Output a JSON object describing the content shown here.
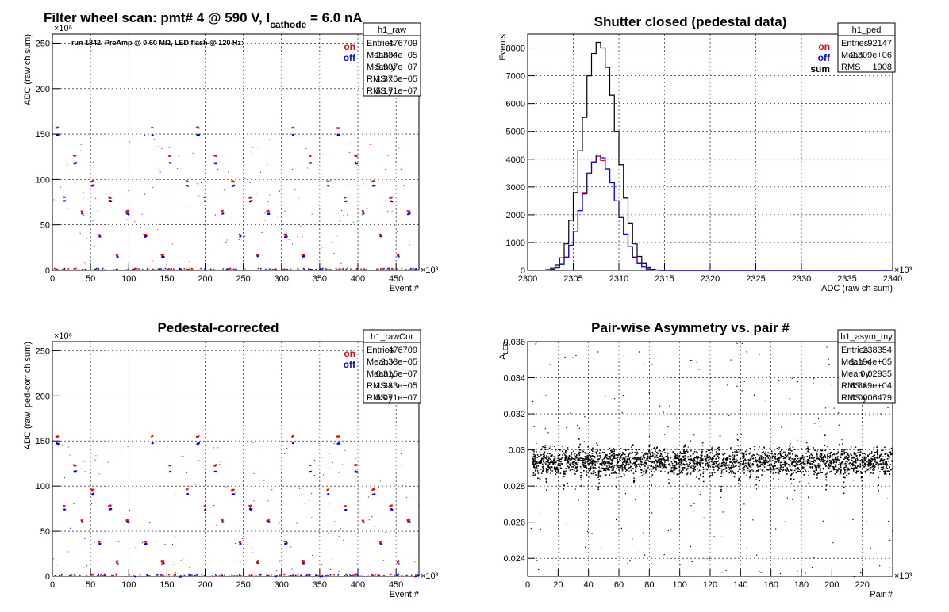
{
  "chart_data": [
    {
      "id": "raw",
      "type": "scatter",
      "title": "Filter wheel scan: pmt#   4 @   590 V, I",
      "title_sub": "cathode",
      "title_tail": " = 6.0 nA",
      "xlabel": "Event #",
      "ylabel": "ADC (raw ch sum)",
      "x_multiplier": "×10³",
      "y_multiplier": "×10⁶",
      "xlim": [
        0,
        480
      ],
      "ylim": [
        0,
        260
      ],
      "x_ticks": [
        "0",
        "50",
        "100",
        "150",
        "200",
        "250",
        "300",
        "350",
        "400",
        "450"
      ],
      "y_ticks": [
        "0",
        "50",
        "100",
        "150",
        "200",
        "250"
      ],
      "x_tick_values": [
        0,
        50,
        100,
        150,
        200,
        250,
        300,
        350,
        400,
        450
      ],
      "y_tick_values": [
        0,
        50,
        100,
        150,
        200,
        250
      ],
      "annotation": "run 1842, PreAmp @ 0.60 MΩ, LED flash @  120 Hz:",
      "grid": true,
      "legend": [
        "on",
        "off"
      ],
      "legend_placement": "top-right",
      "stats": {
        "name": "h1_raw",
        "rows": [
          [
            "Entries",
            "476709"
          ],
          [
            "Mean x",
            "2.384e+05"
          ],
          [
            "Mean y",
            "5.907e+07"
          ],
          [
            "RMS x",
            "1.376e+05"
          ],
          [
            "RMS y",
            "5.171e+07"
          ]
        ]
      },
      "series": [
        {
          "name": "on",
          "color": "#ff0000",
          "levels": [
            158,
            127,
            99,
            81,
            66,
            40,
            18,
            2
          ]
        },
        {
          "name": "off",
          "color": "#0000ff",
          "levels": [
            150,
            119,
            94,
            77,
            63,
            38,
            16,
            2
          ]
        }
      ],
      "period": 23
    },
    {
      "id": "ped",
      "type": "histogram",
      "title": "Shutter closed (pedestal data)",
      "xlabel": "ADC (raw ch sum)",
      "ylabel": "Events",
      "x_multiplier": "×10³",
      "xlim": [
        2300,
        2340
      ],
      "ylim": [
        0,
        8500
      ],
      "x_ticks": [
        "2300",
        "2305",
        "2310",
        "2315",
        "2320",
        "2325",
        "2330",
        "2335",
        "2340"
      ],
      "y_ticks": [
        "0",
        "1000",
        "2000",
        "3000",
        "4000",
        "5000",
        "6000",
        "7000",
        "8000"
      ],
      "x_tick_values": [
        2300,
        2305,
        2310,
        2315,
        2320,
        2325,
        2330,
        2335,
        2340
      ],
      "y_tick_values": [
        0,
        1000,
        2000,
        3000,
        4000,
        5000,
        6000,
        7000,
        8000
      ],
      "grid": true,
      "legend": [
        "on",
        "off",
        "sum"
      ],
      "legend_placement": "top-right",
      "stats": {
        "name": "h1_ped",
        "rows": [
          [
            "Entries",
            "92147"
          ],
          [
            "Mean",
            "2.309e+06"
          ],
          [
            "RMS",
            "1908"
          ]
        ]
      },
      "bin_start": 2302,
      "bin_width": 0.5,
      "series": [
        {
          "name": "sum",
          "color": "#000000",
          "values": [
            30,
            80,
            200,
            450,
            950,
            1800,
            2800,
            4300,
            5500,
            7000,
            7800,
            8200,
            8000,
            7300,
            6300,
            5000,
            3800,
            2600,
            1700,
            950,
            500,
            250,
            100,
            40,
            15
          ]
        },
        {
          "name": "on",
          "color": "#ff0000",
          "values": [
            15,
            40,
            100,
            230,
            480,
            900,
            1400,
            2150,
            2800,
            3500,
            3900,
            4100,
            3950,
            3650,
            3150,
            2500,
            1900,
            1300,
            850,
            480,
            250,
            120,
            50,
            20,
            8
          ]
        },
        {
          "name": "off",
          "color": "#0000ff",
          "values": [
            15,
            40,
            100,
            220,
            470,
            900,
            1400,
            2150,
            2750,
            3500,
            3900,
            4150,
            4050,
            3650,
            3150,
            2500,
            1900,
            1300,
            850,
            470,
            250,
            120,
            50,
            20,
            7
          ]
        }
      ]
    },
    {
      "id": "rawCor",
      "type": "scatter",
      "title": "Pedestal-corrected",
      "xlabel": "Event #",
      "ylabel": "ADC (raw, ped-corr ch sum)",
      "x_multiplier": "×10³",
      "y_multiplier": "×10⁶",
      "xlim": [
        0,
        480
      ],
      "ylim": [
        0,
        260
      ],
      "x_ticks": [
        "0",
        "50",
        "100",
        "150",
        "200",
        "250",
        "300",
        "350",
        "400",
        "450"
      ],
      "y_ticks": [
        "0",
        "50",
        "100",
        "150",
        "200",
        "250"
      ],
      "x_tick_values": [
        0,
        50,
        100,
        150,
        200,
        250,
        300,
        350,
        400,
        450
      ],
      "y_tick_values": [
        0,
        50,
        100,
        150,
        200,
        250
      ],
      "grid": true,
      "legend": [
        "on",
        "off"
      ],
      "legend_placement": "top-right",
      "stats": {
        "name": "h1_rawCor",
        "rows": [
          [
            "Entries",
            "476709"
          ],
          [
            "Mean x",
            "2.33e+05"
          ],
          [
            "Mean y",
            "6.316e+07"
          ],
          [
            "RMS x",
            "1.383e+05"
          ],
          [
            "RMS y",
            "5.071e+07"
          ]
        ]
      },
      "series": [
        {
          "name": "on",
          "color": "#ff0000",
          "levels": [
            156,
            124,
            97,
            79,
            63,
            39,
            17,
            1
          ]
        },
        {
          "name": "off",
          "color": "#0000ff",
          "levels": [
            148,
            117,
            92,
            75,
            61,
            37,
            15,
            1
          ]
        }
      ],
      "period": 23
    },
    {
      "id": "asym",
      "type": "scatter",
      "title": "Pair-wise Asymmetry vs. pair #",
      "xlabel": "Pair #",
      "ylabel": "A",
      "ylabel_sub": "LED",
      "x_multiplier": "×10³",
      "xlim": [
        0,
        240
      ],
      "ylim": [
        0.023,
        0.036
      ],
      "x_ticks": [
        "0",
        "20",
        "40",
        "60",
        "80",
        "100",
        "120",
        "140",
        "160",
        "180",
        "200",
        "220"
      ],
      "y_ticks": [
        "0.024",
        "0.026",
        "0.028",
        "0.03",
        "0.032",
        "0.034",
        "0.036"
      ],
      "x_tick_values": [
        0,
        20,
        40,
        60,
        80,
        100,
        120,
        140,
        160,
        180,
        200,
        220
      ],
      "y_tick_values": [
        0.024,
        0.026,
        0.028,
        0.03,
        0.032,
        0.034,
        0.036
      ],
      "grid": true,
      "stats": {
        "name": "h1_asym_my",
        "rows": [
          [
            "Entries",
            "238354"
          ],
          [
            "Mean x",
            "1.194e+05"
          ],
          [
            "Mean y",
            "0.02935"
          ],
          [
            "RMS x",
            "6.869e+04"
          ],
          [
            "RMS y",
            "0.0006479"
          ]
        ]
      },
      "band": {
        "center": 0.02935,
        "half_width": 0.0007,
        "dip_period": 11.5,
        "dip_depth": 0.0013
      }
    }
  ]
}
